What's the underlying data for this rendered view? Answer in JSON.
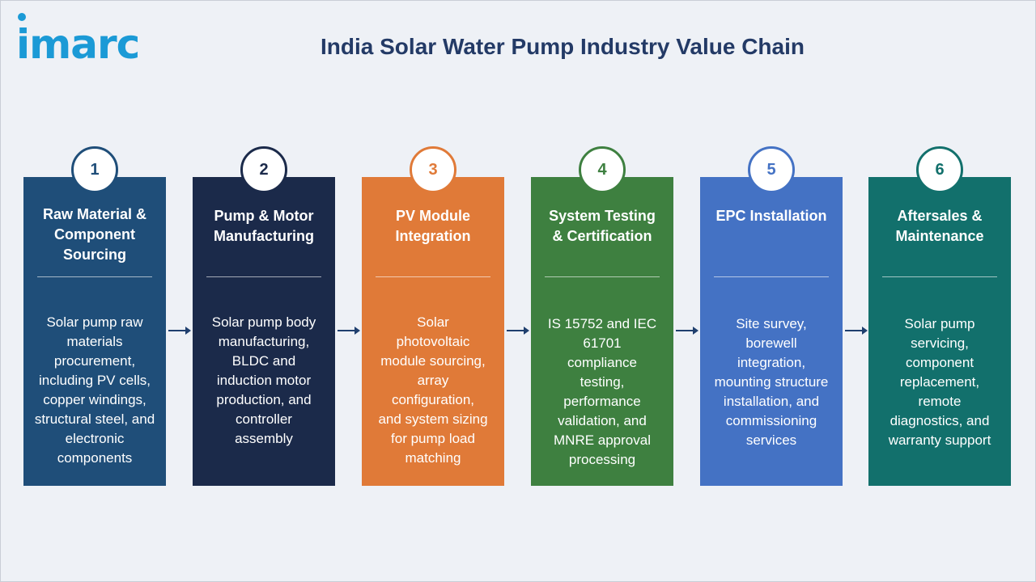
{
  "brand": {
    "logo_text": "imarc"
  },
  "title": "India Solar Water Pump Industry Value Chain",
  "colors": {
    "step1": "#1f4e79",
    "step2": "#1b2a4a",
    "step3": "#e07a38",
    "step4": "#3e8040",
    "step5": "#4472c4",
    "step6": "#12706c",
    "arrow": "#1f3f6e"
  },
  "steps": [
    {
      "number": "1",
      "heading": "Raw Material &\nComponent\nSourcing",
      "body": "Solar pump raw\nmaterials\nprocurement,\nincluding PV cells,\ncopper windings,\nstructural steel, and\nelectronic\ncomponents"
    },
    {
      "number": "2",
      "heading": "Pump & Motor\nManufacturing",
      "body": "Solar pump body\nmanufacturing,\nBLDC and\ninduction motor\nproduction, and\ncontroller\nassembly"
    },
    {
      "number": "3",
      "heading": "PV Module\nIntegration",
      "body": "Solar\nphotovoltaic\nmodule sourcing,\narray\nconfiguration,\nand system sizing\nfor pump load\nmatching"
    },
    {
      "number": "4",
      "heading": "System Testing\n& Certification",
      "body": "IS 15752 and IEC\n61701\ncompliance\ntesting,\nperformance\nvalidation, and\nMNRE approval\nprocessing"
    },
    {
      "number": "5",
      "heading": "EPC Installation",
      "body": "Site survey,\nborewell\nintegration,\nmounting structure\ninstallation, and\ncommissioning\nservices"
    },
    {
      "number": "6",
      "heading": "Aftersales &\nMaintenance",
      "body": "Solar pump\nservicing,\ncomponent\nreplacement,\nremote\ndiagnostics, and\nwarranty support"
    }
  ]
}
